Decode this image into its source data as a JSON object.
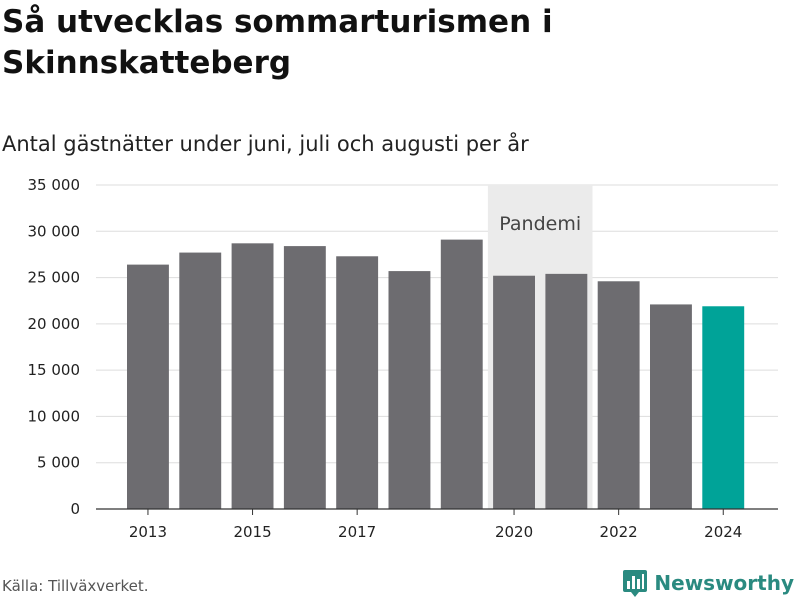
{
  "chart_data": {
    "type": "bar",
    "title": "Så utvecklas sommarturismen i Skinnskatteberg",
    "subtitle": "Antal gästnätter under juni, juli och augusti per år",
    "categories": [
      2013,
      2014,
      2015,
      2016,
      2017,
      2018,
      2019,
      2020,
      2021,
      2022,
      2023,
      2024
    ],
    "values": [
      26400,
      27700,
      28700,
      28400,
      27300,
      25700,
      29100,
      25200,
      25400,
      24600,
      22100,
      21900
    ],
    "highlight_category": 2024,
    "xticks": [
      2013,
      2015,
      2017,
      2020,
      2022,
      2024
    ],
    "yticks": [
      0,
      5000,
      10000,
      15000,
      20000,
      25000,
      30000,
      35000
    ],
    "ytick_labels": [
      "0",
      "5 000",
      "10 000",
      "15 000",
      "20 000",
      "25 000",
      "30 000",
      "35 000"
    ],
    "ylim": [
      0,
      35000
    ],
    "grid": true,
    "annotation": {
      "label": "Pandemi",
      "x_range": [
        2020,
        2021
      ]
    },
    "colors": {
      "bar": "#6d6c70",
      "highlight": "#00a398",
      "band": "#ebebeb",
      "grid": "#dddddd"
    }
  },
  "footer": {
    "source": "Källa: Tillväxverket.",
    "brand": "Newsworthy"
  },
  "icons": {
    "brand_logo": "bar-chart-pin-icon"
  }
}
